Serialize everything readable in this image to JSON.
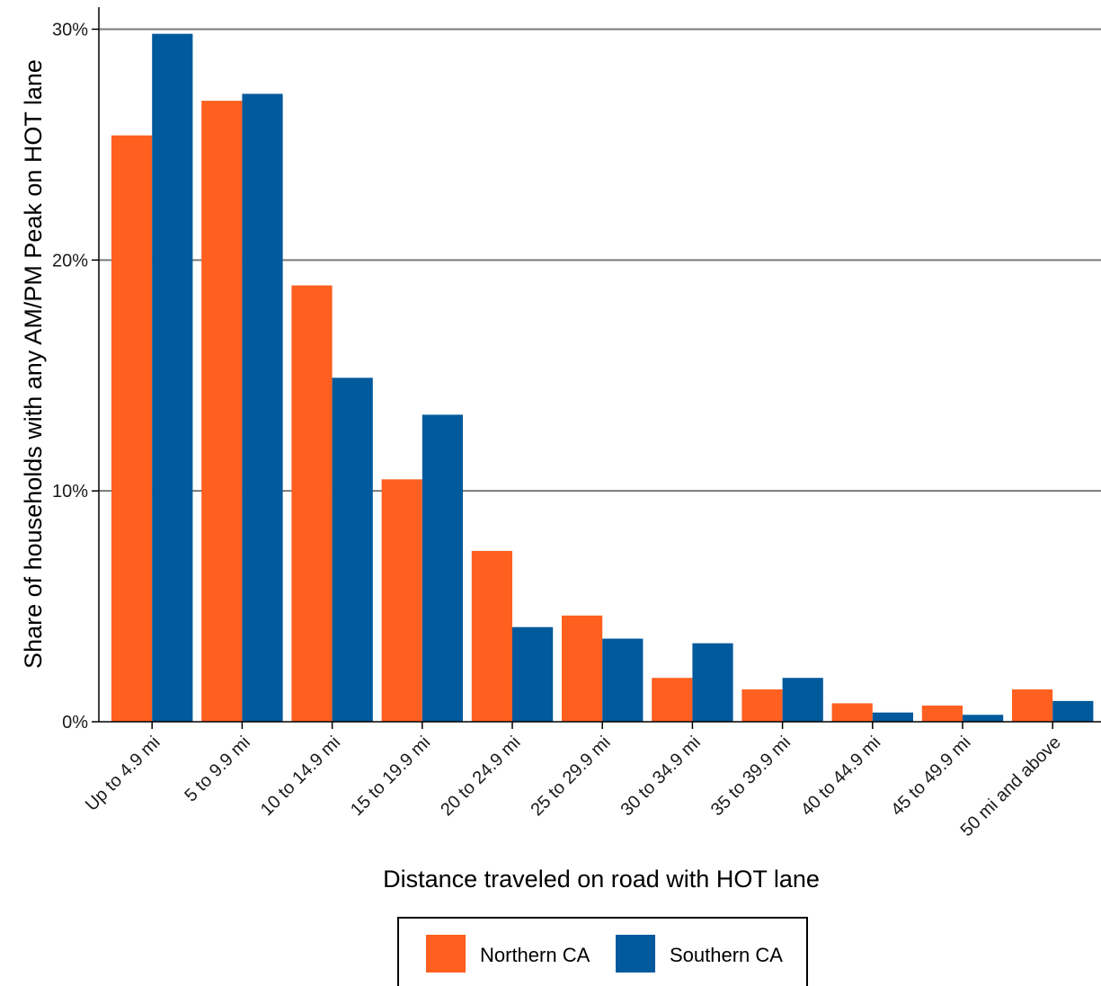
{
  "chart_data": {
    "type": "bar",
    "title": "",
    "xlabel": "Distance traveled on road with HOT lane",
    "ylabel": "Share of households with any AM/PM Peak on HOT lane",
    "categories": [
      "Up to 4.9 mi",
      "5 to 9.9 mi",
      "10 to 14.9 mi",
      "15 to 19.9 mi",
      "20 to 24.9 mi",
      "25 to 29.9 mi",
      "30 to 34.9 mi",
      "35 to 39.9 mi",
      "40 to 44.9 mi",
      "45 to 49.9 mi",
      "50 mi and above"
    ],
    "series": [
      {
        "name": "Northern CA",
        "color": "#FF5F1F",
        "values": [
          25.4,
          26.9,
          18.9,
          10.5,
          7.4,
          4.6,
          1.9,
          1.4,
          0.8,
          0.7,
          1.4
        ]
      },
      {
        "name": "Southern CA",
        "color": "#005A9C",
        "values": [
          29.8,
          27.2,
          14.9,
          13.3,
          4.1,
          3.6,
          3.4,
          1.9,
          0.4,
          0.3,
          0.9
        ]
      }
    ],
    "ylim": [
      0,
      31
    ],
    "yticks": [
      0,
      10,
      20,
      30
    ],
    "ytick_labels": [
      "0%",
      "10%",
      "20%",
      "30%"
    ],
    "grid": "horizontal-major",
    "legend_position": "bottom"
  }
}
